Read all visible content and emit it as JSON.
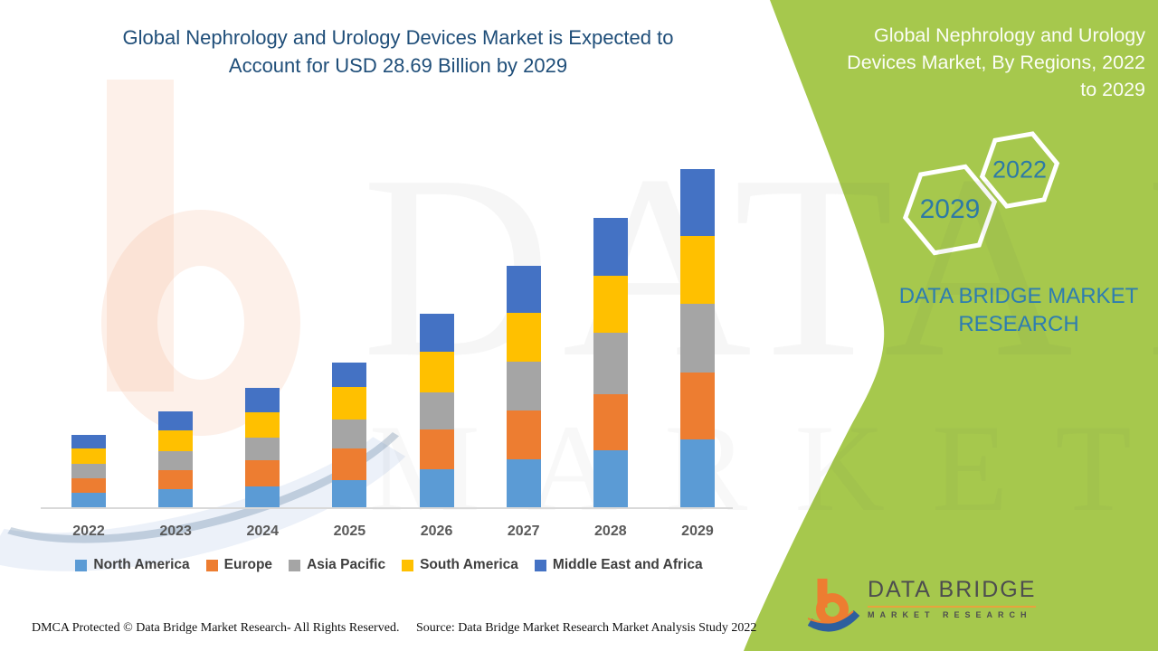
{
  "header": {
    "title_lines": [
      "Global Nephrology and Urology Devices Market is Expected to",
      "Account for USD 28.69 Billion by 2029"
    ],
    "title_color": "#1f4e79"
  },
  "side_panel": {
    "title_lines": [
      "Global Nephrology and Urology",
      "Devices Market, By Regions, 2022",
      "to 2029"
    ],
    "badge_start_year": "2022",
    "badge_end_year": "2029",
    "brand_text": "DATA BRIDGE MARKET RESEARCH",
    "panel_color": "#a6c84d",
    "badge_text_color": "#2d7aa6"
  },
  "chart_data": {
    "type": "bar",
    "stacked": true,
    "title": "Global Nephrology and Urology Devices Market is Expected to Account for USD 28.69 Billion by 2029",
    "unit": "USD Billion",
    "grid": false,
    "legend_position": "bottom",
    "ylim": [
      0,
      30
    ],
    "categories": [
      "2022",
      "2023",
      "2024",
      "2025",
      "2026",
      "2027",
      "2028",
      "2029"
    ],
    "series": [
      {
        "name": "North America",
        "color": "#5b9bd5",
        "values": [
          1.23,
          1.51,
          1.76,
          2.3,
          3.2,
          4.09,
          4.85,
          5.75
        ]
      },
      {
        "name": "Europe",
        "color": "#ed7d31",
        "values": [
          1.23,
          1.66,
          2.22,
          2.68,
          3.37,
          4.09,
          4.73,
          5.67
        ]
      },
      {
        "name": "Asia Pacific",
        "color": "#a5a5a5",
        "values": [
          1.23,
          1.59,
          1.94,
          2.43,
          3.14,
          4.16,
          5.24,
          5.83
        ]
      },
      {
        "name": "South America",
        "color": "#ffc000",
        "values": [
          1.3,
          1.76,
          2.12,
          2.81,
          3.5,
          4.14,
          4.85,
          5.75
        ]
      },
      {
        "name": "Middle East and Africa",
        "color": "#4472c4",
        "values": [
          1.15,
          1.59,
          2.09,
          2.09,
          3.2,
          3.99,
          4.88,
          5.69
        ]
      }
    ],
    "totals": [
      6.14,
      8.11,
      10.13,
      12.31,
      16.41,
      20.47,
      24.55,
      28.69
    ]
  },
  "watermark": {
    "line1": "DATA BRIDGE",
    "line2": "MARKET RESEARCH"
  },
  "logo": {
    "name": "DATA BRIDGE",
    "subtext": "MARKET RESEARCH"
  },
  "footer": {
    "dmca": "DMCA Protected © Data Bridge Market Research- All Rights Reserved.",
    "source": "Source: Data Bridge Market Research Market Analysis Study 2022"
  }
}
